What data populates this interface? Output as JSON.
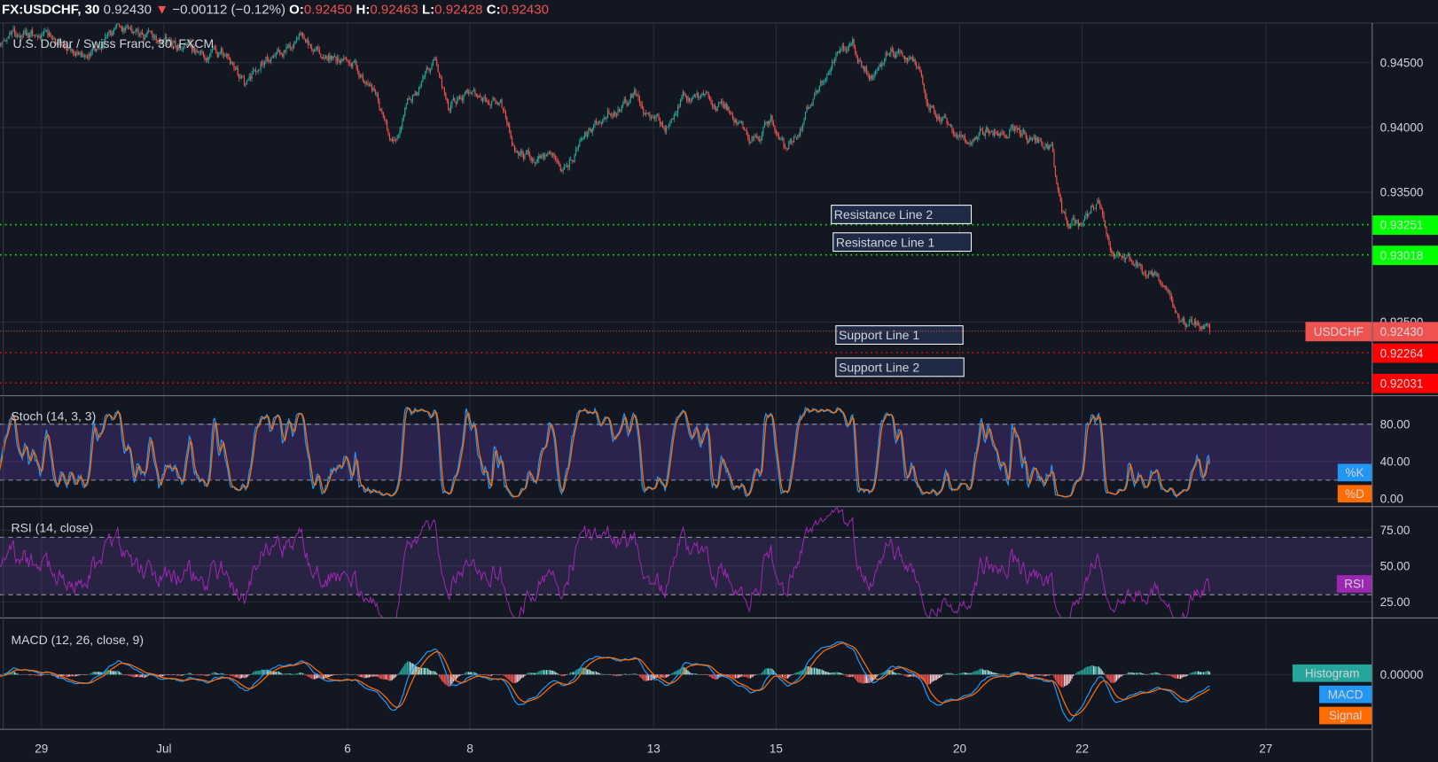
{
  "header": {
    "symbol": "FX:USDCHF, 30",
    "last": "0.92430",
    "direction_icon": "triangle-down-icon",
    "change": "−0.00112 (−0.12%)",
    "o_label": "O:",
    "o": "0.92450",
    "h_label": "H:",
    "h": "0.92463",
    "l_label": "L:",
    "l": "0.92428",
    "c_label": "C:",
    "c": "0.92430"
  },
  "main_legend": "U.S. Dollar / Swiss Franc, 30, FXCM",
  "colors": {
    "background": "#131722",
    "grid": "#2a2e39",
    "up": "#26a69a",
    "down": "#ef5350",
    "resistance": "#00ff00",
    "support": "#ff0000",
    "last_price": "#ef5350",
    "stoch_k": "#2196f3",
    "stoch_d": "#ff6d00",
    "rsi": "#9c27b0",
    "macd": "#2196f3",
    "signal": "#ff6d00",
    "hist_up": "#26a69a",
    "hist_down": "#ef5350"
  },
  "chart_data": {
    "type": "candlestick",
    "symbol": "FX:USDCHF",
    "interval": "30",
    "grid": true,
    "x_axis": {
      "ticks": [
        {
          "label": "29",
          "date": "2020-06-29"
        },
        {
          "label": "Jul",
          "date": "2020-07-01"
        },
        {
          "label": "6",
          "date": "2020-07-06"
        },
        {
          "label": "8",
          "date": "2020-07-08"
        },
        {
          "label": "13",
          "date": "2020-07-13"
        },
        {
          "label": "15",
          "date": "2020-07-15"
        },
        {
          "label": "20",
          "date": "2020-07-20"
        },
        {
          "label": "22",
          "date": "2020-07-22"
        },
        {
          "label": "27",
          "date": "2020-07-27"
        }
      ]
    },
    "price_axis": {
      "range": [
        0.9198,
        0.9482
      ],
      "ticks": [
        {
          "label": "0.94500",
          "value": 0.945
        },
        {
          "label": "0.94000",
          "value": 0.94
        },
        {
          "label": "0.93500",
          "value": 0.935
        },
        {
          "label": "0.92500",
          "value": 0.925
        }
      ]
    },
    "price_path": [
      {
        "t": "2020-06-26 08:00",
        "price": 0.9465
      },
      {
        "t": "2020-06-26 20:00",
        "price": 0.9472
      },
      {
        "t": "2020-06-29 06:00",
        "price": 0.9468
      },
      {
        "t": "2020-06-29 18:00",
        "price": 0.945
      },
      {
        "t": "2020-06-30 06:00",
        "price": 0.9475
      },
      {
        "t": "2020-06-30 18:00",
        "price": 0.947
      },
      {
        "t": "2020-07-01 06:00",
        "price": 0.9462
      },
      {
        "t": "2020-07-01 14:00",
        "price": 0.9458
      },
      {
        "t": "2020-07-02 00:00",
        "price": 0.9455
      },
      {
        "t": "2020-07-02 08:00",
        "price": 0.9432
      },
      {
        "t": "2020-07-02 16:00",
        "price": 0.9455
      },
      {
        "t": "2020-07-03 06:00",
        "price": 0.9468
      },
      {
        "t": "2020-07-03 16:00",
        "price": 0.9458
      },
      {
        "t": "2020-07-06 02:00",
        "price": 0.9447
      },
      {
        "t": "2020-07-06 12:00",
        "price": 0.942
      },
      {
        "t": "2020-07-06 18:00",
        "price": 0.939
      },
      {
        "t": "2020-07-07 00:00",
        "price": 0.942
      },
      {
        "t": "2020-07-07 10:00",
        "price": 0.945
      },
      {
        "t": "2020-07-07 16:00",
        "price": 0.9415
      },
      {
        "t": "2020-07-08 00:00",
        "price": 0.9428
      },
      {
        "t": "2020-07-08 12:00",
        "price": 0.942
      },
      {
        "t": "2020-07-08 18:00",
        "price": 0.938
      },
      {
        "t": "2020-07-09 12:00",
        "price": 0.9372
      },
      {
        "t": "2020-07-09 18:00",
        "price": 0.9385
      },
      {
        "t": "2020-07-10 06:00",
        "price": 0.9412
      },
      {
        "t": "2020-07-10 18:00",
        "price": 0.9425
      },
      {
        "t": "2020-07-13 00:00",
        "price": 0.9405
      },
      {
        "t": "2020-07-13 06:00",
        "price": 0.94
      },
      {
        "t": "2020-07-13 12:00",
        "price": 0.9428
      },
      {
        "t": "2020-07-13 18:00",
        "price": 0.9418
      },
      {
        "t": "2020-07-14 06:00",
        "price": 0.9415
      },
      {
        "t": "2020-07-14 14:00",
        "price": 0.9388
      },
      {
        "t": "2020-07-14 22:00",
        "price": 0.9405
      },
      {
        "t": "2020-07-15 04:00",
        "price": 0.938
      },
      {
        "t": "2020-07-15 14:00",
        "price": 0.942
      },
      {
        "t": "2020-07-15 22:00",
        "price": 0.9455
      },
      {
        "t": "2020-07-16 06:00",
        "price": 0.9462
      },
      {
        "t": "2020-07-16 14:00",
        "price": 0.944
      },
      {
        "t": "2020-07-16 20:00",
        "price": 0.9458
      },
      {
        "t": "2020-07-17 06:00",
        "price": 0.9455
      },
      {
        "t": "2020-07-17 14:00",
        "price": 0.941
      },
      {
        "t": "2020-07-20 00:00",
        "price": 0.939
      },
      {
        "t": "2020-07-20 12:00",
        "price": 0.94
      },
      {
        "t": "2020-07-21 00:00",
        "price": 0.9395
      },
      {
        "t": "2020-07-21 12:00",
        "price": 0.9385
      },
      {
        "t": "2020-07-21 16:00",
        "price": 0.933
      },
      {
        "t": "2020-07-22 00:00",
        "price": 0.9322
      },
      {
        "t": "2020-07-22 06:00",
        "price": 0.9345
      },
      {
        "t": "2020-07-22 12:00",
        "price": 0.93
      },
      {
        "t": "2020-07-22 20:00",
        "price": 0.9295
      },
      {
        "t": "2020-07-23 06:00",
        "price": 0.928
      },
      {
        "t": "2020-07-23 14:00",
        "price": 0.9255
      },
      {
        "t": "2020-07-23 22:00",
        "price": 0.9245
      },
      {
        "t": "2020-07-24 02:00",
        "price": 0.9243
      }
    ],
    "horizontal_lines": [
      {
        "label": "Resistance Line 2",
        "price": 0.93251,
        "price_label": "0.93251",
        "kind": "resistance"
      },
      {
        "label": "Resistance Line 1",
        "price": 0.93018,
        "price_label": "0.93018",
        "kind": "resistance"
      },
      {
        "label": "Support Line 1",
        "price": 0.92264,
        "price_label": "0.92264",
        "kind": "support"
      },
      {
        "label": "Support Line 2",
        "price": 0.92031,
        "price_label": "0.92031",
        "kind": "support"
      }
    ],
    "last_price": {
      "label": "USDCHF",
      "price": 0.9243,
      "price_label": "0.92430"
    },
    "indicators": {
      "stoch": {
        "title": "Stoch (14, 3, 3)",
        "k_label": "%K",
        "d_label": "%D",
        "range": [
          -1,
          110
        ],
        "bands": [
          20,
          80
        ],
        "ticks": [
          {
            "label": "80.00",
            "value": 80
          },
          {
            "label": "40.00",
            "value": 40
          },
          {
            "label": "0.00",
            "value": 0
          }
        ]
      },
      "rsi": {
        "title": "RSI (14, close)",
        "label": "RSI",
        "bands": [
          30,
          70
        ],
        "ticks": [
          {
            "label": "75.00",
            "value": 75
          },
          {
            "label": "50.00",
            "value": 50
          },
          {
            "label": "25.00",
            "value": 25
          }
        ]
      },
      "macd": {
        "title": "MACD (12, 26, close, 9)",
        "hist_label": "Histogram",
        "macd_label": "MACD",
        "signal_label": "Signal",
        "ticks": [
          {
            "label": "0.00000",
            "value": 0
          }
        ]
      }
    }
  }
}
